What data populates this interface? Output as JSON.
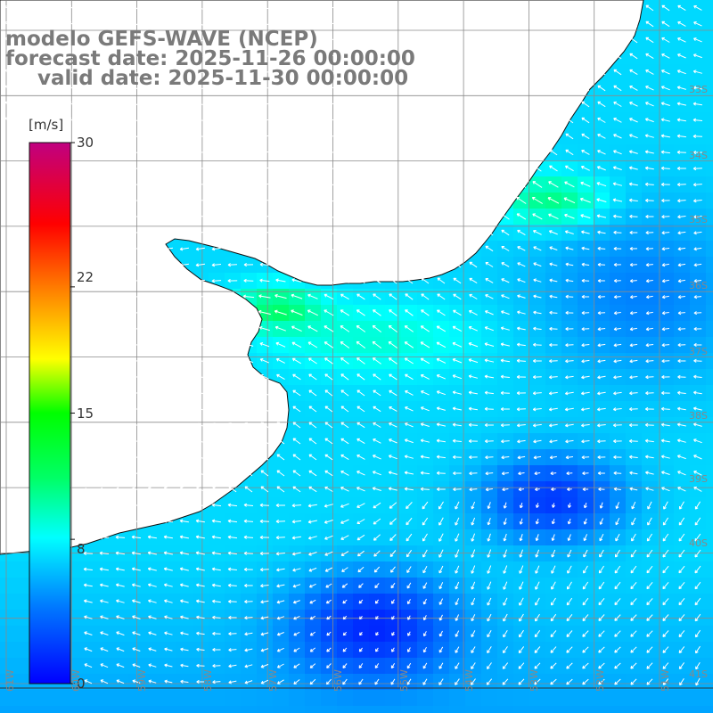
{
  "titles": {
    "model": "modelo GEFS-WAVE (NCEP)",
    "forecast": "forecast date: 2025-11-26 00:00:00",
    "valid": "valid date: 2025-11-30 00:00:00"
  },
  "colorbar": {
    "unit": "[m/s]",
    "ticks": [
      "30",
      "22",
      "15",
      "8",
      "0"
    ],
    "tick_values": [
      30,
      22,
      15,
      8,
      0
    ],
    "min": 0,
    "max": 30,
    "stops": [
      "#0000ff",
      "#00aaff",
      "#00ffff",
      "#00ff00",
      "#ffff00",
      "#ff8800",
      "#ff0000",
      "#ff0066",
      "#c00080"
    ]
  },
  "map": {
    "lat_labels": [
      "33S",
      "34S",
      "35S",
      "36S",
      "37S",
      "38S",
      "39S",
      "40S",
      "41S"
    ],
    "lon_labels": [
      "61W",
      "60W",
      "59W",
      "58W",
      "57W",
      "56W",
      "55W",
      "54W",
      "53W",
      "52W",
      "51W"
    ],
    "land_color": "#ffffff",
    "grid_color": "#8a8a8a",
    "arrow_color": "#ffffff"
  }
}
